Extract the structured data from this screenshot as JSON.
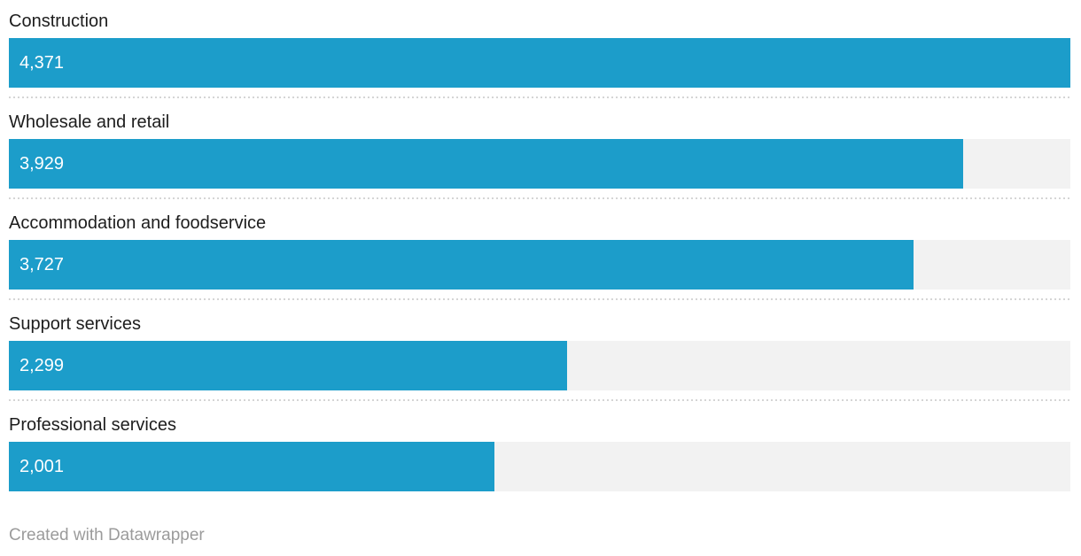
{
  "chart_data": {
    "type": "bar",
    "orientation": "horizontal",
    "title": "",
    "xlabel": "",
    "ylabel": "",
    "categories": [
      "Construction",
      "Wholesale and retail",
      "Accommodation and foodservice",
      "Support services",
      "Professional services"
    ],
    "values": [
      4371,
      3929,
      3727,
      2299,
      2001
    ],
    "value_labels": [
      "4,371",
      "3,929",
      "3,727",
      "2,299",
      "2,001"
    ],
    "xlim": [
      0,
      4371
    ],
    "grid": false,
    "legend": "none",
    "value_labels_inside_bars": true,
    "bar_color": "#1c9dca",
    "track_color": "#f2f2f2",
    "label_color": "#1d1d1d",
    "value_text_color": "#ffffff",
    "separator_color": "#d5d5d5"
  },
  "rows": [
    {
      "label": "Construction",
      "value": 4371,
      "value_label": "4,371"
    },
    {
      "label": "Wholesale and retail",
      "value": 3929,
      "value_label": "3,929"
    },
    {
      "label": "Accommodation and foodservice",
      "value": 3727,
      "value_label": "3,727"
    },
    {
      "label": "Support services",
      "value": 2299,
      "value_label": "2,299"
    },
    {
      "label": "Professional services",
      "value": 2001,
      "value_label": "2,001"
    }
  ],
  "footer": {
    "attribution": "Created with Datawrapper",
    "text_color": "#9b9b9b"
  }
}
